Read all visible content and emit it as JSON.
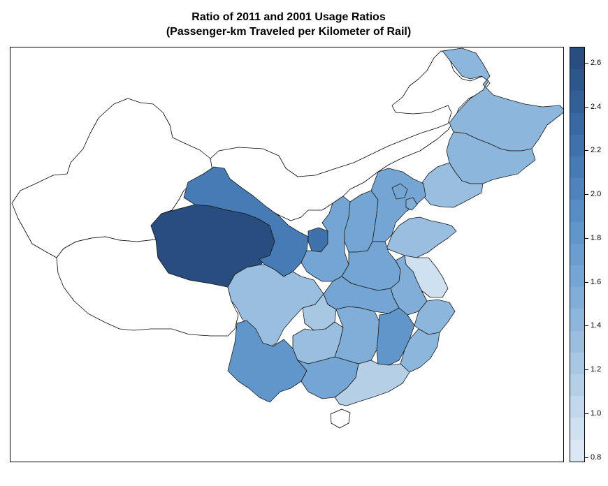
{
  "title": {
    "line1": "Ratio of 2011 and 2001 Usage Ratios",
    "line2": "(Passenger-km Traveled per Kilometer of Rail)"
  },
  "legend": {
    "ticks": [
      "2.6",
      "2.4",
      "2.2",
      "2.0",
      "1.8",
      "1.6",
      "1.4",
      "1.2",
      "1.0",
      "0.8"
    ],
    "min": 0.78,
    "max": 2.67,
    "colors_low_to_high": [
      "#dbe7f4",
      "#cfe0f0",
      "#c3d8ec",
      "#b5cfe7",
      "#a7c7e3",
      "#99bee0",
      "#8cb6dc",
      "#80aed8",
      "#75a6d3",
      "#6b9ecf",
      "#6196ca",
      "#578dc5",
      "#4e84be",
      "#467bb6",
      "#3f72ad",
      "#3869a2",
      "#325f96",
      "#2d568a",
      "#284d7e"
    ]
  },
  "chart_data": {
    "type": "choropleth",
    "title": "Ratio of 2011 and 2001 Usage Ratios",
    "subtitle": "(Passenger-km Traveled per Kilometer of Rail)",
    "scale_range": [
      0.78,
      2.67
    ],
    "regions": [
      {
        "id": "heilongjiang",
        "value": 1.45
      },
      {
        "id": "jilin",
        "value": 1.45
      },
      {
        "id": "liaoning",
        "value": 1.35
      },
      {
        "id": "inner-mongolia",
        "value": null
      },
      {
        "id": "xinjiang",
        "value": null
      },
      {
        "id": "tibet",
        "value": null
      },
      {
        "id": "qinghai",
        "value": 2.62
      },
      {
        "id": "gansu",
        "value": 2.15
      },
      {
        "id": "ningxia",
        "value": 2.25
      },
      {
        "id": "shaanxi",
        "value": 1.6
      },
      {
        "id": "shanxi",
        "value": 1.65
      },
      {
        "id": "hebei",
        "value": 1.6
      },
      {
        "id": "beijing",
        "value": 1.6
      },
      {
        "id": "tianjin",
        "value": 1.55
      },
      {
        "id": "shandong",
        "value": 1.35
      },
      {
        "id": "henan",
        "value": 1.6
      },
      {
        "id": "jiangsu",
        "value": 0.95
      },
      {
        "id": "anhui",
        "value": 1.55
      },
      {
        "id": "hubei",
        "value": 1.6
      },
      {
        "id": "sichuan",
        "value": 1.35
      },
      {
        "id": "chongqing",
        "value": 1.2
      },
      {
        "id": "yunnan",
        "value": 1.85
      },
      {
        "id": "guizhou",
        "value": 1.3
      },
      {
        "id": "hunan",
        "value": 1.55
      },
      {
        "id": "jiangxi",
        "value": 1.85
      },
      {
        "id": "zhejiang",
        "value": 1.45
      },
      {
        "id": "fujian",
        "value": 1.4
      },
      {
        "id": "guangxi",
        "value": 1.6
      },
      {
        "id": "guangdong",
        "value": 1.15
      },
      {
        "id": "hainan",
        "value": null
      }
    ]
  }
}
